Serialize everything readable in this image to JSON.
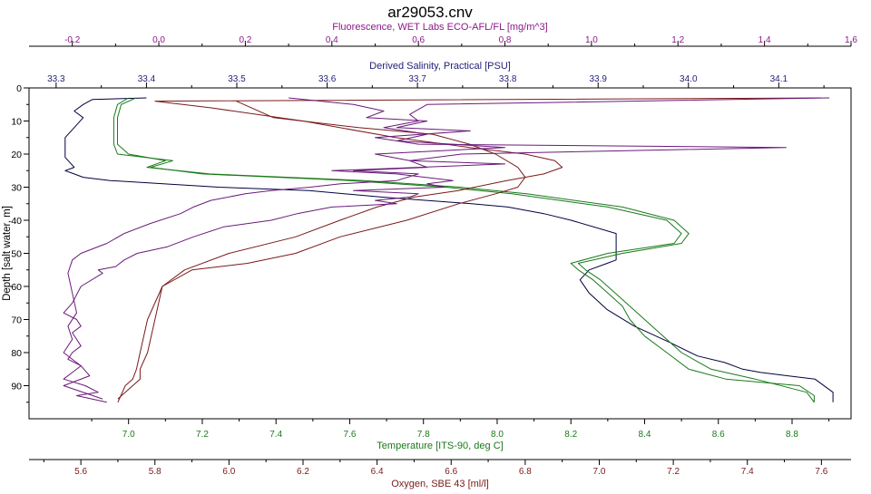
{
  "chart_data": {
    "type": "line",
    "title": "ar29053.cnv",
    "orientation": "depth-profile",
    "grid": false,
    "legend": "none",
    "depth_axis": {
      "label": "Depth [salt water, m]",
      "range": [
        0,
        100
      ],
      "reversed": true,
      "ticks": [
        0,
        10,
        20,
        30,
        40,
        50,
        60,
        70,
        80,
        90
      ]
    },
    "axes": {
      "fluorescence": {
        "label": "Fluorescence, WET Labs ECO-AFL/FL [mg/m^3]",
        "position": "top-outer",
        "color": "#8b1a8b",
        "range": [
          -0.3,
          1.6
        ],
        "ticks": [
          -0.2,
          0.0,
          0.2,
          0.4,
          0.6,
          0.8,
          1.0,
          1.2,
          1.4,
          1.6
        ]
      },
      "salinity": {
        "label": "Derived Salinity, Practical [PSU]",
        "position": "top-inner",
        "color": "#1f1f7a",
        "range": [
          33.27,
          34.18
        ],
        "ticks": [
          33.3,
          33.4,
          33.5,
          33.6,
          33.7,
          33.8,
          33.9,
          34.0,
          34.1
        ]
      },
      "temperature": {
        "label": "Temperature [ITS-90, deg C]",
        "position": "bottom-inner",
        "color": "#1a7a1a",
        "range": [
          6.73,
          8.96
        ],
        "ticks": [
          7.0,
          7.2,
          7.4,
          7.6,
          7.8,
          8.0,
          8.2,
          8.4,
          8.6,
          8.8
        ]
      },
      "oxygen": {
        "label": "Oxygen, SBE 43 [ml/l]",
        "position": "bottom-outer",
        "color": "#7a1a1a",
        "range": [
          5.46,
          7.68
        ],
        "ticks": [
          5.6,
          5.8,
          6.0,
          6.2,
          6.4,
          6.6,
          6.8,
          7.0,
          7.2,
          7.4,
          7.6
        ]
      }
    },
    "series": [
      {
        "axis": "salinity",
        "color": "#000040",
        "x": [
          33.4,
          33.34,
          33.33,
          33.32,
          33.33,
          33.32,
          33.31,
          33.31,
          33.31,
          33.32,
          33.31,
          33.32,
          33.33,
          33.36,
          33.48,
          33.58,
          33.66,
          33.71,
          33.76,
          33.8,
          33.84,
          33.87,
          33.92,
          33.92,
          33.92,
          33.91,
          33.89,
          33.88,
          33.89,
          33.91,
          33.94,
          33.98,
          34.01,
          34.04,
          34.06,
          34.08,
          34.11,
          34.14,
          34.16,
          34.16
        ],
        "y": [
          3,
          3.5,
          5,
          7,
          9,
          12,
          15,
          18,
          21,
          24,
          25,
          26,
          27,
          28,
          30,
          31,
          33,
          34,
          35,
          36,
          38,
          40,
          44,
          48,
          52,
          53,
          55,
          58,
          62,
          67,
          72,
          77,
          81,
          83,
          85,
          86,
          87,
          88,
          92,
          95
        ]
      },
      {
        "axis": "temperature",
        "color": "#1a7a1a",
        "x": [
          7.0,
          6.97,
          6.96,
          6.96,
          6.96,
          6.97,
          7.12,
          7.06,
          7.2,
          7.6,
          7.86,
          8.04,
          8.3,
          8.46,
          8.5,
          8.48,
          8.3,
          8.2,
          8.22,
          8.26,
          8.3,
          8.34,
          8.36,
          8.4,
          8.46,
          8.52,
          8.62,
          8.82,
          8.86,
          8.86
        ],
        "y": [
          3,
          5,
          9,
          13,
          17,
          20,
          22,
          24,
          26,
          28,
          30,
          32,
          36,
          40,
          44,
          47,
          50,
          53,
          55,
          58,
          62,
          66,
          70,
          75,
          80,
          85,
          88,
          90,
          93,
          95
        ]
      },
      {
        "axis": "temperature",
        "color": "#1a7a1a",
        "x": [
          7.02,
          6.98,
          6.97,
          6.97,
          6.97,
          7.0,
          7.1,
          7.05,
          7.22,
          7.64,
          7.9,
          8.08,
          8.34,
          8.48,
          8.52,
          8.5,
          8.34,
          8.22,
          8.24,
          8.28,
          8.32,
          8.36,
          8.4,
          8.45,
          8.5,
          8.58,
          8.7,
          8.84,
          8.86
        ],
        "y": [
          3,
          5,
          9,
          13,
          17,
          20,
          22,
          24,
          26,
          28,
          30,
          32,
          36,
          40,
          44,
          47,
          50,
          53,
          55,
          58,
          62,
          66,
          70,
          75,
          80,
          85,
          88,
          92,
          95
        ]
      },
      {
        "axis": "oxygen",
        "color": "#7a1a1a",
        "x": [
          7.6,
          5.8,
          5.95,
          6.2,
          6.45,
          6.65,
          6.8,
          6.88,
          6.9,
          6.85,
          6.75,
          6.62,
          6.5,
          6.4,
          6.3,
          6.18,
          6.0,
          5.88,
          5.82,
          5.8,
          5.78,
          5.76,
          5.76,
          5.74,
          5.72,
          5.7
        ],
        "y": [
          3,
          4,
          6,
          10,
          15,
          18,
          20,
          22,
          24,
          26,
          28,
          31,
          33,
          36,
          40,
          45,
          50,
          55,
          60,
          70,
          80,
          85,
          88,
          90,
          92,
          94
        ]
      },
      {
        "axis": "oxygen",
        "color": "#7a1a1a",
        "x": [
          5.7,
          5.72,
          5.74,
          5.75,
          5.76,
          5.78,
          5.82,
          5.9,
          6.05,
          6.18,
          6.3,
          6.48,
          6.62,
          6.72,
          6.78,
          6.8,
          6.78,
          6.72,
          6.65,
          6.55,
          6.35,
          6.12,
          6.02
        ],
        "y": [
          95,
          90,
          88,
          85,
          80,
          70,
          60,
          55,
          53,
          50,
          45,
          40,
          35,
          32,
          30,
          27,
          24,
          20,
          17,
          14,
          12,
          9,
          4
        ]
      },
      {
        "axis": "fluorescence",
        "color": "#6a1a7a",
        "x": [
          0.3,
          0.45,
          0.52,
          0.48,
          0.62,
          0.55,
          0.72,
          0.5,
          0.6,
          1.45,
          0.7,
          0.58,
          0.8,
          0.4,
          0.55,
          0.68,
          0.62,
          0.66,
          0.45,
          0.6,
          0.58,
          0.5,
          0.55,
          0.4,
          0.32,
          0.26,
          0.15,
          0.08,
          0.02,
          -0.05,
          -0.08,
          -0.1,
          -0.14,
          -0.13,
          -0.18,
          -0.2,
          -0.22,
          -0.19,
          -0.18,
          -0.2,
          -0.19,
          -0.18,
          -0.2,
          -0.21,
          -0.18,
          -0.2,
          -0.22,
          -0.17,
          -0.14,
          -0.19,
          -0.12
        ],
        "y": [
          3,
          5,
          7,
          9,
          10,
          12,
          13,
          15,
          17,
          18,
          20,
          22,
          23,
          25,
          26,
          28,
          29,
          30,
          31,
          32,
          33,
          34,
          35,
          36,
          38,
          40,
          42,
          45,
          48,
          50,
          52,
          54,
          55,
          56,
          60,
          65,
          68,
          70,
          72,
          74,
          76,
          78,
          80,
          82,
          84,
          86,
          88,
          90,
          92,
          93,
          95
        ]
      },
      {
        "axis": "fluorescence",
        "color": "#6a1a7a",
        "x": [
          1.55,
          0.62,
          0.58,
          0.6,
          0.52,
          0.62,
          0.55,
          0.8,
          0.5,
          0.58,
          0.62,
          0.45,
          0.6,
          0.55,
          0.42,
          0.35,
          0.26,
          0.2,
          0.12,
          0.08,
          0.05,
          -0.02,
          -0.08,
          -0.12,
          -0.18,
          -0.2,
          -0.21,
          -0.2,
          -0.19,
          -0.21,
          -0.2,
          -0.22,
          -0.18,
          -0.16,
          -0.22,
          -0.13
        ],
        "y": [
          3,
          5,
          8,
          10,
          12,
          14,
          16,
          18,
          20,
          22,
          24,
          25,
          26,
          28,
          29,
          30,
          31,
          32,
          34,
          36,
          38,
          41,
          44,
          47,
          50,
          52,
          56,
          62,
          68,
          72,
          76,
          80,
          84,
          87,
          90,
          94
        ]
      }
    ]
  }
}
